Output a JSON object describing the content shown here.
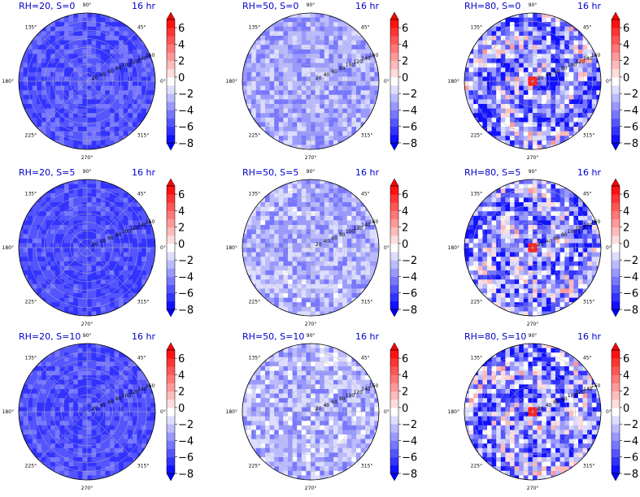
{
  "chart_data": {
    "type": "polar-filled-contour-grid",
    "time_label": "16 hr",
    "angle_labels": [
      "0°",
      "45°",
      "90°",
      "135°",
      "180°",
      "225°",
      "270°",
      "315°"
    ],
    "radial_labels": [
      "20",
      "40",
      "60",
      "80",
      "100",
      "120",
      "140",
      "160"
    ],
    "radial_label_angle_deg": 22.5,
    "colorbar": {
      "colormap": "bwr",
      "min": -8,
      "max": 7,
      "levels": [
        -8,
        -7,
        -6,
        -5,
        -4,
        -3,
        -2,
        -1,
        0,
        1,
        2,
        3,
        4,
        5,
        6,
        7
      ],
      "ticks": [
        "6",
        "4",
        "2",
        "0",
        "−2",
        "−4",
        "−6",
        "−8"
      ],
      "extend": "both"
    },
    "panels": [
      {
        "title": "RH=20, S=0",
        "rh": 20,
        "s": 0,
        "dominant_value": -5.5,
        "variability": 1.2,
        "max_value": -1
      },
      {
        "title": "RH=50, S=0",
        "rh": 50,
        "s": 0,
        "dominant_value": -3,
        "variability": 1.8,
        "max_value": 1.5
      },
      {
        "title": "RH=80, S=0",
        "rh": 80,
        "s": 0,
        "dominant_value": -3.5,
        "variability": 4.5,
        "max_value": 6
      },
      {
        "title": "RH=20, S=5",
        "rh": 20,
        "s": 5,
        "dominant_value": -5.8,
        "variability": 1.0,
        "max_value": -1.5
      },
      {
        "title": "RH=50, S=5",
        "rh": 50,
        "s": 5,
        "dominant_value": -2.8,
        "variability": 1.9,
        "max_value": 1.5
      },
      {
        "title": "RH=80, S=5",
        "rh": 80,
        "s": 5,
        "dominant_value": -3.5,
        "variability": 4.5,
        "max_value": 6
      },
      {
        "title": "RH=20, S=10",
        "rh": 20,
        "s": 10,
        "dominant_value": -5.7,
        "variability": 1.1,
        "max_value": -1.5
      },
      {
        "title": "RH=50, S=10",
        "rh": 50,
        "s": 10,
        "dominant_value": -2.6,
        "variability": 2.0,
        "max_value": 2
      },
      {
        "title": "RH=80, S=10",
        "rh": 80,
        "s": 10,
        "dominant_value": -3.5,
        "variability": 4.5,
        "max_value": 6
      }
    ]
  }
}
